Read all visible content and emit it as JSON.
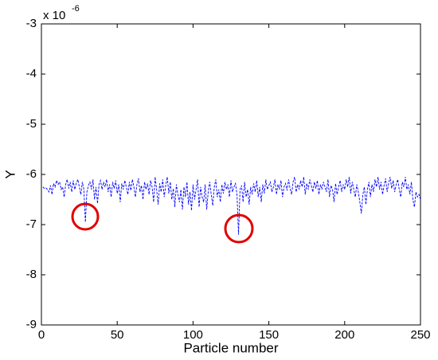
{
  "chart_data": {
    "type": "line",
    "y_label": "Y",
    "x_label": "Particle number",
    "y_multiplier": {
      "base": "x 10",
      "exponent": "-6"
    },
    "xlim": [
      0,
      250
    ],
    "xticks": [
      0,
      50,
      100,
      150,
      200,
      250
    ],
    "ylim": [
      -9,
      -3
    ],
    "yticks": [
      -9,
      -8,
      -7,
      -6,
      -5,
      -4,
      -3
    ],
    "grid": false,
    "series": [
      {
        "name": "Y",
        "color": "#0000ff",
        "x": [
          1,
          2,
          3,
          4,
          5,
          6,
          7,
          8,
          9,
          10,
          11,
          12,
          13,
          14,
          15,
          16,
          17,
          18,
          19,
          20,
          21,
          22,
          23,
          24,
          25,
          26,
          27,
          28,
          29,
          30,
          31,
          32,
          33,
          34,
          35,
          36,
          37,
          38,
          39,
          40,
          41,
          42,
          43,
          44,
          45,
          46,
          47,
          48,
          49,
          50,
          51,
          52,
          53,
          54,
          55,
          56,
          57,
          58,
          59,
          60,
          61,
          62,
          63,
          64,
          65,
          66,
          67,
          68,
          69,
          70,
          71,
          72,
          73,
          74,
          75,
          76,
          77,
          78,
          79,
          80,
          81,
          82,
          83,
          84,
          85,
          86,
          87,
          88,
          89,
          90,
          91,
          92,
          93,
          94,
          95,
          96,
          97,
          98,
          99,
          100,
          101,
          102,
          103,
          104,
          105,
          106,
          107,
          108,
          109,
          110,
          111,
          112,
          113,
          114,
          115,
          116,
          117,
          118,
          119,
          120,
          121,
          122,
          123,
          124,
          125,
          126,
          127,
          128,
          129,
          130,
          131,
          132,
          133,
          134,
          135,
          136,
          137,
          138,
          139,
          140,
          141,
          142,
          143,
          144,
          145,
          146,
          147,
          148,
          149,
          150,
          151,
          152,
          153,
          154,
          155,
          156,
          157,
          158,
          159,
          160,
          161,
          162,
          163,
          164,
          165,
          166,
          167,
          168,
          169,
          170,
          171,
          172,
          173,
          174,
          175,
          176,
          177,
          178,
          179,
          180,
          181,
          182,
          183,
          184,
          185,
          186,
          187,
          188,
          189,
          190,
          191,
          192,
          193,
          194,
          195,
          196,
          197,
          198,
          199,
          200,
          201,
          202,
          203,
          204,
          205,
          206,
          207,
          208,
          209,
          210,
          211,
          212,
          213,
          214,
          215,
          216,
          217,
          218,
          219,
          220,
          221,
          222,
          223,
          224,
          225,
          226,
          227,
          228,
          229,
          230,
          231,
          232,
          233,
          234,
          235,
          236,
          237,
          238,
          239,
          240,
          241,
          242,
          243,
          244,
          245,
          246,
          247,
          248,
          249,
          250
        ],
        "values": [
          -6.25,
          -6.28,
          -6.27,
          -6.3,
          -6.35,
          -6.22,
          -6.4,
          -6.18,
          -6.25,
          -6.12,
          -6.2,
          -6.15,
          -6.3,
          -6.25,
          -6.45,
          -6.2,
          -6.1,
          -6.28,
          -6.15,
          -6.35,
          -6.12,
          -6.3,
          -6.18,
          -6.1,
          -6.25,
          -6.4,
          -6.15,
          -6.3,
          -6.95,
          -6.35,
          -6.22,
          -6.15,
          -6.3,
          -6.1,
          -6.5,
          -6.25,
          -6.58,
          -6.2,
          -6.12,
          -6.3,
          -6.15,
          -6.25,
          -6.1,
          -6.35,
          -6.2,
          -6.45,
          -6.15,
          -6.28,
          -6.12,
          -6.38,
          -6.2,
          -6.55,
          -6.18,
          -6.3,
          -6.12,
          -6.25,
          -6.4,
          -6.15,
          -6.32,
          -6.1,
          -6.25,
          -6.45,
          -6.2,
          -6.08,
          -6.35,
          -6.22,
          -6.5,
          -6.15,
          -6.3,
          -6.18,
          -6.4,
          -6.12,
          -6.25,
          -6.55,
          -6.05,
          -6.3,
          -6.6,
          -6.18,
          -6.35,
          -6.1,
          -6.45,
          -6.22,
          -6.05,
          -6.38,
          -6.15,
          -6.5,
          -6.28,
          -6.65,
          -6.2,
          -6.4,
          -6.55,
          -6.3,
          -6.7,
          -6.25,
          -6.45,
          -6.15,
          -6.6,
          -6.35,
          -6.72,
          -6.2,
          -6.5,
          -6.3,
          -6.1,
          -6.65,
          -6.25,
          -6.45,
          -6.55,
          -6.2,
          -6.7,
          -6.35,
          -6.15,
          -6.4,
          -6.62,
          -6.25,
          -6.1,
          -6.45,
          -6.3,
          -6.55,
          -6.2,
          -6.38,
          -6.15,
          -6.3,
          -6.2,
          -6.45,
          -6.12,
          -6.35,
          -6.25,
          -6.18,
          -6.4,
          -7.2,
          -6.3,
          -6.22,
          -6.55,
          -6.15,
          -6.45,
          -6.3,
          -6.6,
          -6.25,
          -6.4,
          -6.18,
          -6.35,
          -6.12,
          -6.45,
          -6.25,
          -6.55,
          -6.2,
          -6.38,
          -6.1,
          -6.3,
          -6.22,
          -6.15,
          -6.35,
          -6.25,
          -6.1,
          -6.4,
          -6.2,
          -6.3,
          -6.12,
          -6.45,
          -6.25,
          -6.18,
          -6.32,
          -6.1,
          -6.28,
          -6.4,
          -6.15,
          -6.05,
          -6.35,
          -6.2,
          -6.3,
          -6.12,
          -6.25,
          -6.05,
          -6.4,
          -6.18,
          -6.3,
          -6.1,
          -6.22,
          -6.35,
          -6.15,
          -6.28,
          -6.12,
          -6.4,
          -6.2,
          -6.3,
          -6.15,
          -6.25,
          -6.35,
          -6.1,
          -6.45,
          -6.22,
          -6.3,
          -6.55,
          -6.18,
          -6.4,
          -6.25,
          -6.12,
          -6.35,
          -6.2,
          -6.3,
          -6.1,
          -6.25,
          -6.05,
          -6.38,
          -6.15,
          -6.3,
          -6.45,
          -6.2,
          -6.35,
          -6.55,
          -6.78,
          -6.4,
          -6.25,
          -6.6,
          -6.3,
          -6.15,
          -6.45,
          -6.2,
          -6.35,
          -6.1,
          -6.25,
          -6.05,
          -6.3,
          -6.15,
          -6.4,
          -6.22,
          -6.08,
          -6.35,
          -6.18,
          -6.05,
          -6.28,
          -6.12,
          -6.35,
          -6.2,
          -6.1,
          -6.3,
          -6.45,
          -6.15,
          -6.25,
          -6.05,
          -6.3,
          -6.2,
          -6.4,
          -6.15,
          -6.5,
          -6.65,
          -6.35,
          -6.45,
          -6.4,
          -6.5
        ]
      }
    ]
  }
}
